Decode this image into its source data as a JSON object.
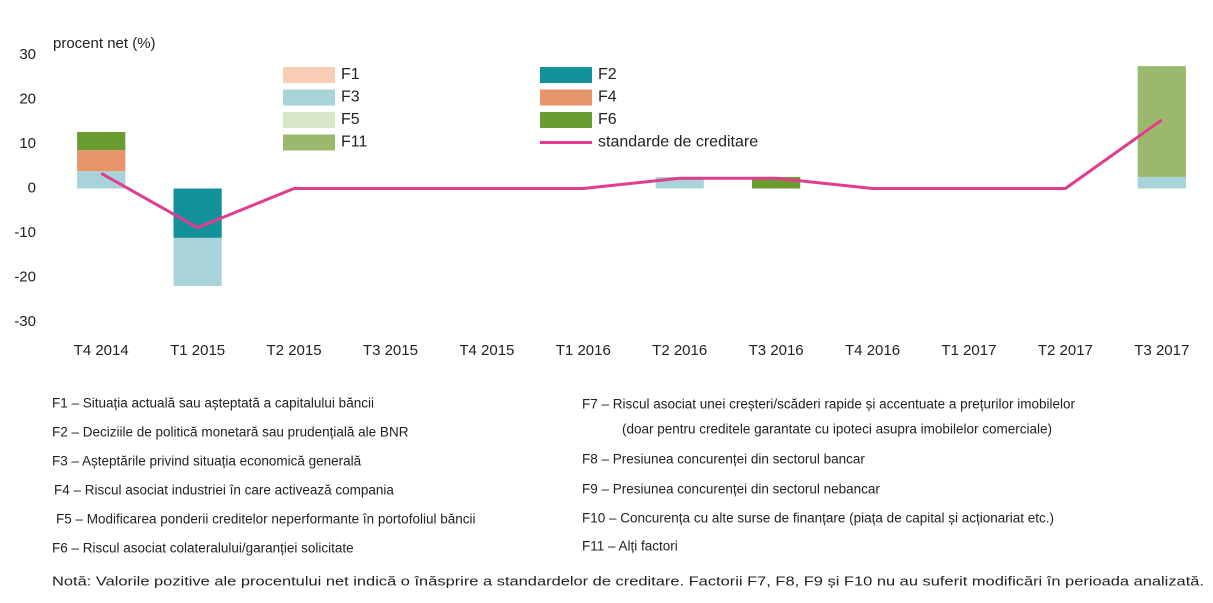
{
  "chart_data": {
    "type": "bar",
    "stacked": true,
    "y_label": "procent net (%)",
    "categories": [
      "T4 2014",
      "T1 2015",
      "T2 2015",
      "T3 2015",
      "T4 2015",
      "T1 2016",
      "T2 2016",
      "T3 2016",
      "T4 2016",
      "T1 2017",
      "T2 2017",
      "T3 2017"
    ],
    "ylim": [
      -30,
      30
    ],
    "yticks": [
      -30,
      -20,
      -10,
      0,
      10,
      20,
      30
    ],
    "series": [
      {
        "name": "F1",
        "color": "#f8cdb4",
        "values": [
          null,
          null,
          null,
          null,
          null,
          null,
          null,
          null,
          null,
          null,
          null,
          null
        ]
      },
      {
        "name": "F2",
        "color": "#13919a",
        "values": [
          null,
          -11.1,
          null,
          null,
          null,
          null,
          null,
          null,
          null,
          null,
          null,
          null
        ]
      },
      {
        "name": "F3",
        "color": "#a8d3d8",
        "values": [
          3.9,
          -10.8,
          null,
          null,
          null,
          null,
          2.6,
          null,
          null,
          null,
          null,
          2.6
        ]
      },
      {
        "name": "F4",
        "color": "#e8946b",
        "values": [
          4.7,
          null,
          null,
          null,
          null,
          null,
          null,
          null,
          null,
          null,
          null,
          null
        ]
      },
      {
        "name": "F5",
        "color": "#d9e5c9",
        "values": [
          null,
          null,
          null,
          null,
          null,
          null,
          null,
          null,
          null,
          null,
          null,
          null
        ]
      },
      {
        "name": "F6",
        "color": "#6a9c2f",
        "values": [
          4.1,
          null,
          null,
          null,
          null,
          null,
          null,
          2.6,
          null,
          null,
          null,
          null
        ]
      },
      {
        "name": "F11",
        "color": "#9bb96d",
        "values": [
          null,
          null,
          null,
          null,
          null,
          null,
          null,
          null,
          null,
          null,
          null,
          24.9
        ]
      },
      {
        "name": "standarde de creditare",
        "type": "line",
        "color": "#e03d8c",
        "values": [
          3.4,
          -8.8,
          0,
          0,
          0,
          0,
          2.3,
          2.3,
          0,
          0,
          0,
          15.4
        ]
      }
    ]
  },
  "notes": {
    "left": [
      "F1 – Situația actuală sau așteptată a capitalului băncii",
      "F2 – Deciziile de politică monetară sau prudențială ale BNR",
      "F3 – Așteptările privind situația economică generală",
      "F4 – Riscul asociat industriei în care activează compania",
      "F5 – Modificarea ponderii creditelor neperformante în portofoliul băncii",
      "F6 – Riscul asociat colateralului/garanției solicitate"
    ],
    "right": [
      "F7 – Riscul asociat unei creșteri/scăderi rapide și accentuate a prețurilor imobilelor",
      "(doar pentru creditele garantate cu ipoteci asupra imobilelor comerciale)",
      "F8 – Presiunea concurenței din sectorul bancar",
      "F9 – Presiunea concurenței din sectorul nebancar",
      "F10 – Concurența cu alte surse de finanțare (piața de capital și acționariat etc.)",
      "F11 – Alți factori"
    ],
    "footnote": "Notă: Valorile pozitive ale procentului net indică o înăsprire a standardelor de creditare. Factorii F7, F8, F9 și F10 nu au suferit modificări în perioada analizată."
  }
}
